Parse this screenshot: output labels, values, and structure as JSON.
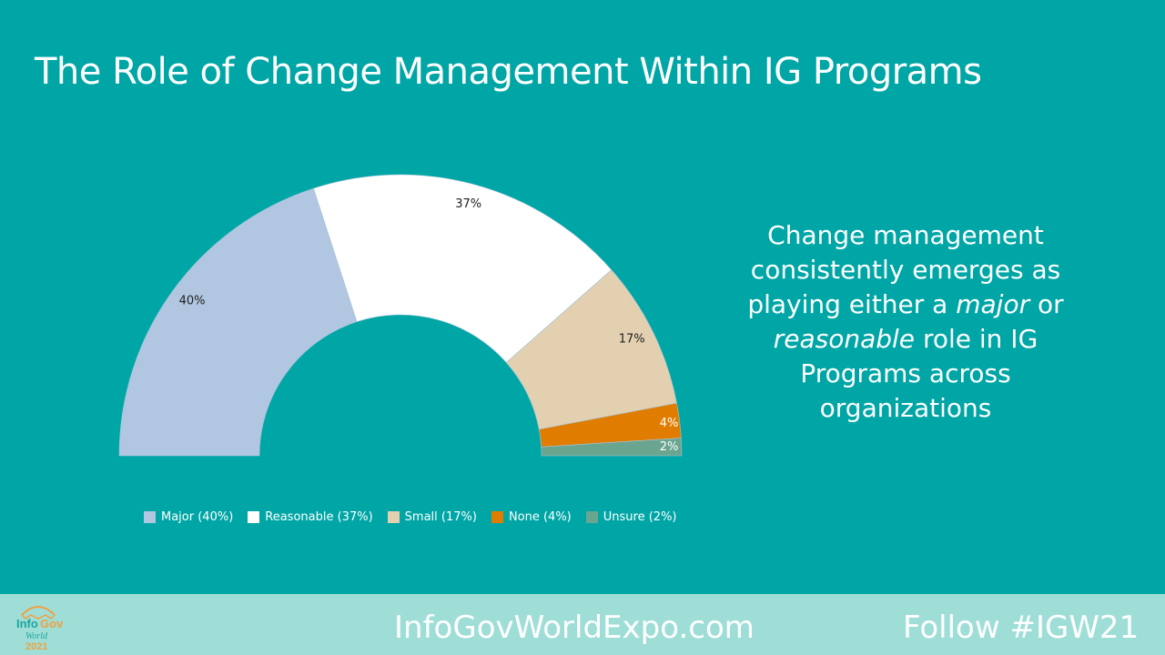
{
  "slide": {
    "title": "The Role of Change Management Within IG Programs",
    "note_parts": [
      "Change management consistently emerges as playing either a ",
      "major",
      " or ",
      "reasonable",
      " role in IG Programs across organizations"
    ],
    "footer_site": "InfoGovWorldExpo.com",
    "footer_follow": "Follow #IGW21",
    "logo_text": "InfoGov World 2021"
  },
  "chart_data": {
    "type": "pie",
    "subtype": "half-donut",
    "categories": [
      "Major",
      "Reasonable",
      "Small",
      "None",
      "Unsure"
    ],
    "values": [
      40,
      37,
      17,
      4,
      2
    ],
    "data_labels": [
      "40%",
      "37%",
      "17%",
      "4%",
      "2%"
    ],
    "legend": [
      "Major (40%)",
      "Reasonable (37%)",
      "Small (17%)",
      "None (4%)",
      "Unsure (2%)"
    ],
    "legend_placement": "bottom",
    "colors": [
      "#b1c6e0",
      "#ffffff",
      "#e2d0b0",
      "#e07d00",
      "#6aa590"
    ],
    "label_colors": [
      "#222222",
      "#222222",
      "#222222",
      "#ffffff",
      "#ffffff"
    ]
  }
}
